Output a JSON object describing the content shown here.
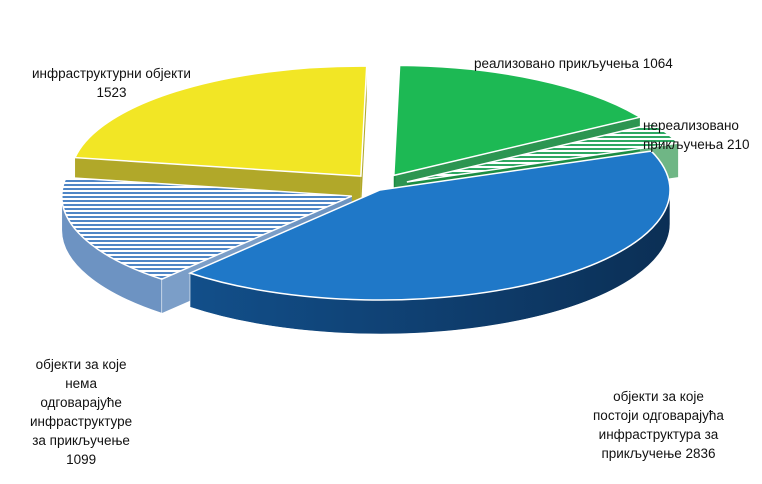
{
  "chart_data": {
    "type": "pie",
    "style": "3d-exploded",
    "categories": [
      "реализовано прикључења",
      "нереализовано прикључења",
      "објекти за које постоји одговарајућа инфраструктура за прикључење",
      "објекти за које нема одговарајуће инфраструктуре за прикључење",
      "инфраструктурни објекти"
    ],
    "values": [
      1064,
      210,
      2836,
      1099,
      1523
    ],
    "colors": [
      "#1db954",
      "#8fd6a0",
      "#1f78c8",
      "#a7c4e4",
      "#f2e625"
    ],
    "patterns": [
      "solid",
      "stripes",
      "solid",
      "stripes",
      "solid"
    ],
    "data_labels": [
      "реализовано прикључења 1064",
      "нереализовано\nприкључења 210",
      "објекти за које\nпостоји одговарајућа\nинфраструктура за\nприкључење  2836",
      "објекти  за које\nнема\nодговарајуће\nинфраструктуре\nза прикључење\n1099",
      "инфраструктурни објекти\n1523"
    ],
    "legend": "none"
  }
}
